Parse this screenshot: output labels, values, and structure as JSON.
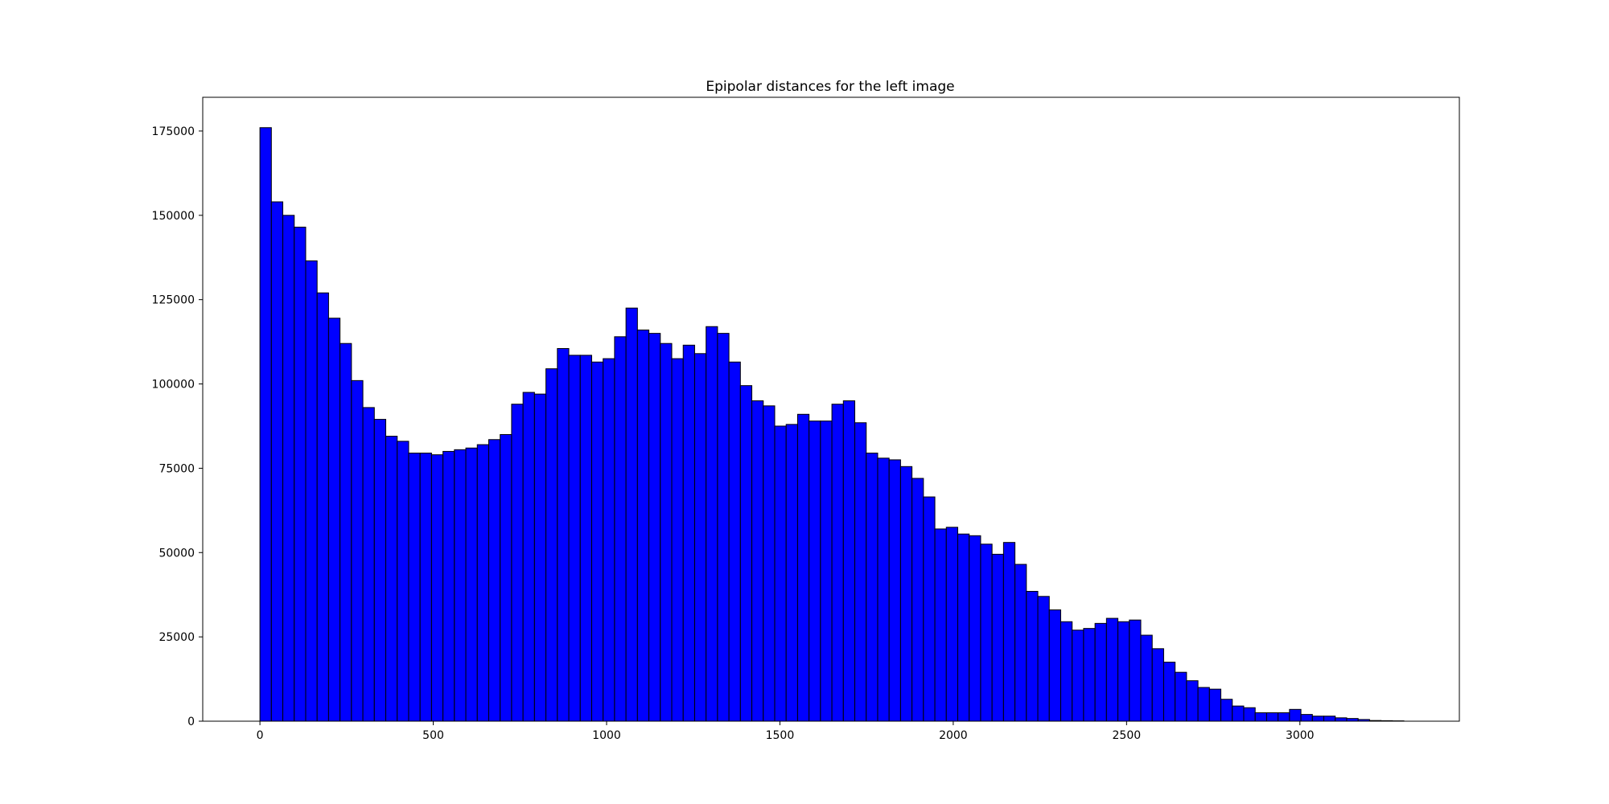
{
  "chart_data": {
    "type": "bar",
    "title": "Epipolar distances for the left image",
    "xlabel": "",
    "ylabel": "",
    "xlim": [
      -165,
      3460
    ],
    "ylim": [
      0,
      185000
    ],
    "x_ticks": [
      0,
      500,
      1000,
      1500,
      2000,
      2500,
      3000
    ],
    "y_ticks": [
      0,
      25000,
      50000,
      75000,
      100000,
      125000,
      150000,
      175000
    ],
    "grid": false,
    "bin_start": 0,
    "bin_width": 33,
    "bar_color": "#0000ff",
    "edge_color": "#000000",
    "values": [
      176000,
      154000,
      150000,
      146500,
      136500,
      127000,
      119500,
      112000,
      101000,
      93000,
      89500,
      84500,
      83000,
      79500,
      79500,
      79000,
      80000,
      80500,
      81000,
      82000,
      83500,
      85000,
      94000,
      97500,
      97000,
      104500,
      110500,
      108500,
      108500,
      106500,
      107500,
      114000,
      122500,
      116000,
      115000,
      112000,
      107500,
      111500,
      109000,
      117000,
      115000,
      106500,
      99500,
      95000,
      93500,
      87500,
      88000,
      91000,
      89000,
      89000,
      94000,
      95000,
      88500,
      79500,
      78000,
      77500,
      75500,
      72000,
      66500,
      57000,
      57500,
      55500,
      55000,
      52500,
      49500,
      53000,
      46500,
      38500,
      37000,
      33000,
      29500,
      27000,
      27500,
      29000,
      30500,
      29500,
      30000,
      25500,
      21500,
      17500,
      14500,
      12000,
      10000,
      9500,
      6500,
      4500,
      4000,
      2500,
      2500,
      2500,
      3500,
      2000,
      1500,
      1500,
      1000,
      800,
      500,
      200,
      150,
      100
    ]
  }
}
